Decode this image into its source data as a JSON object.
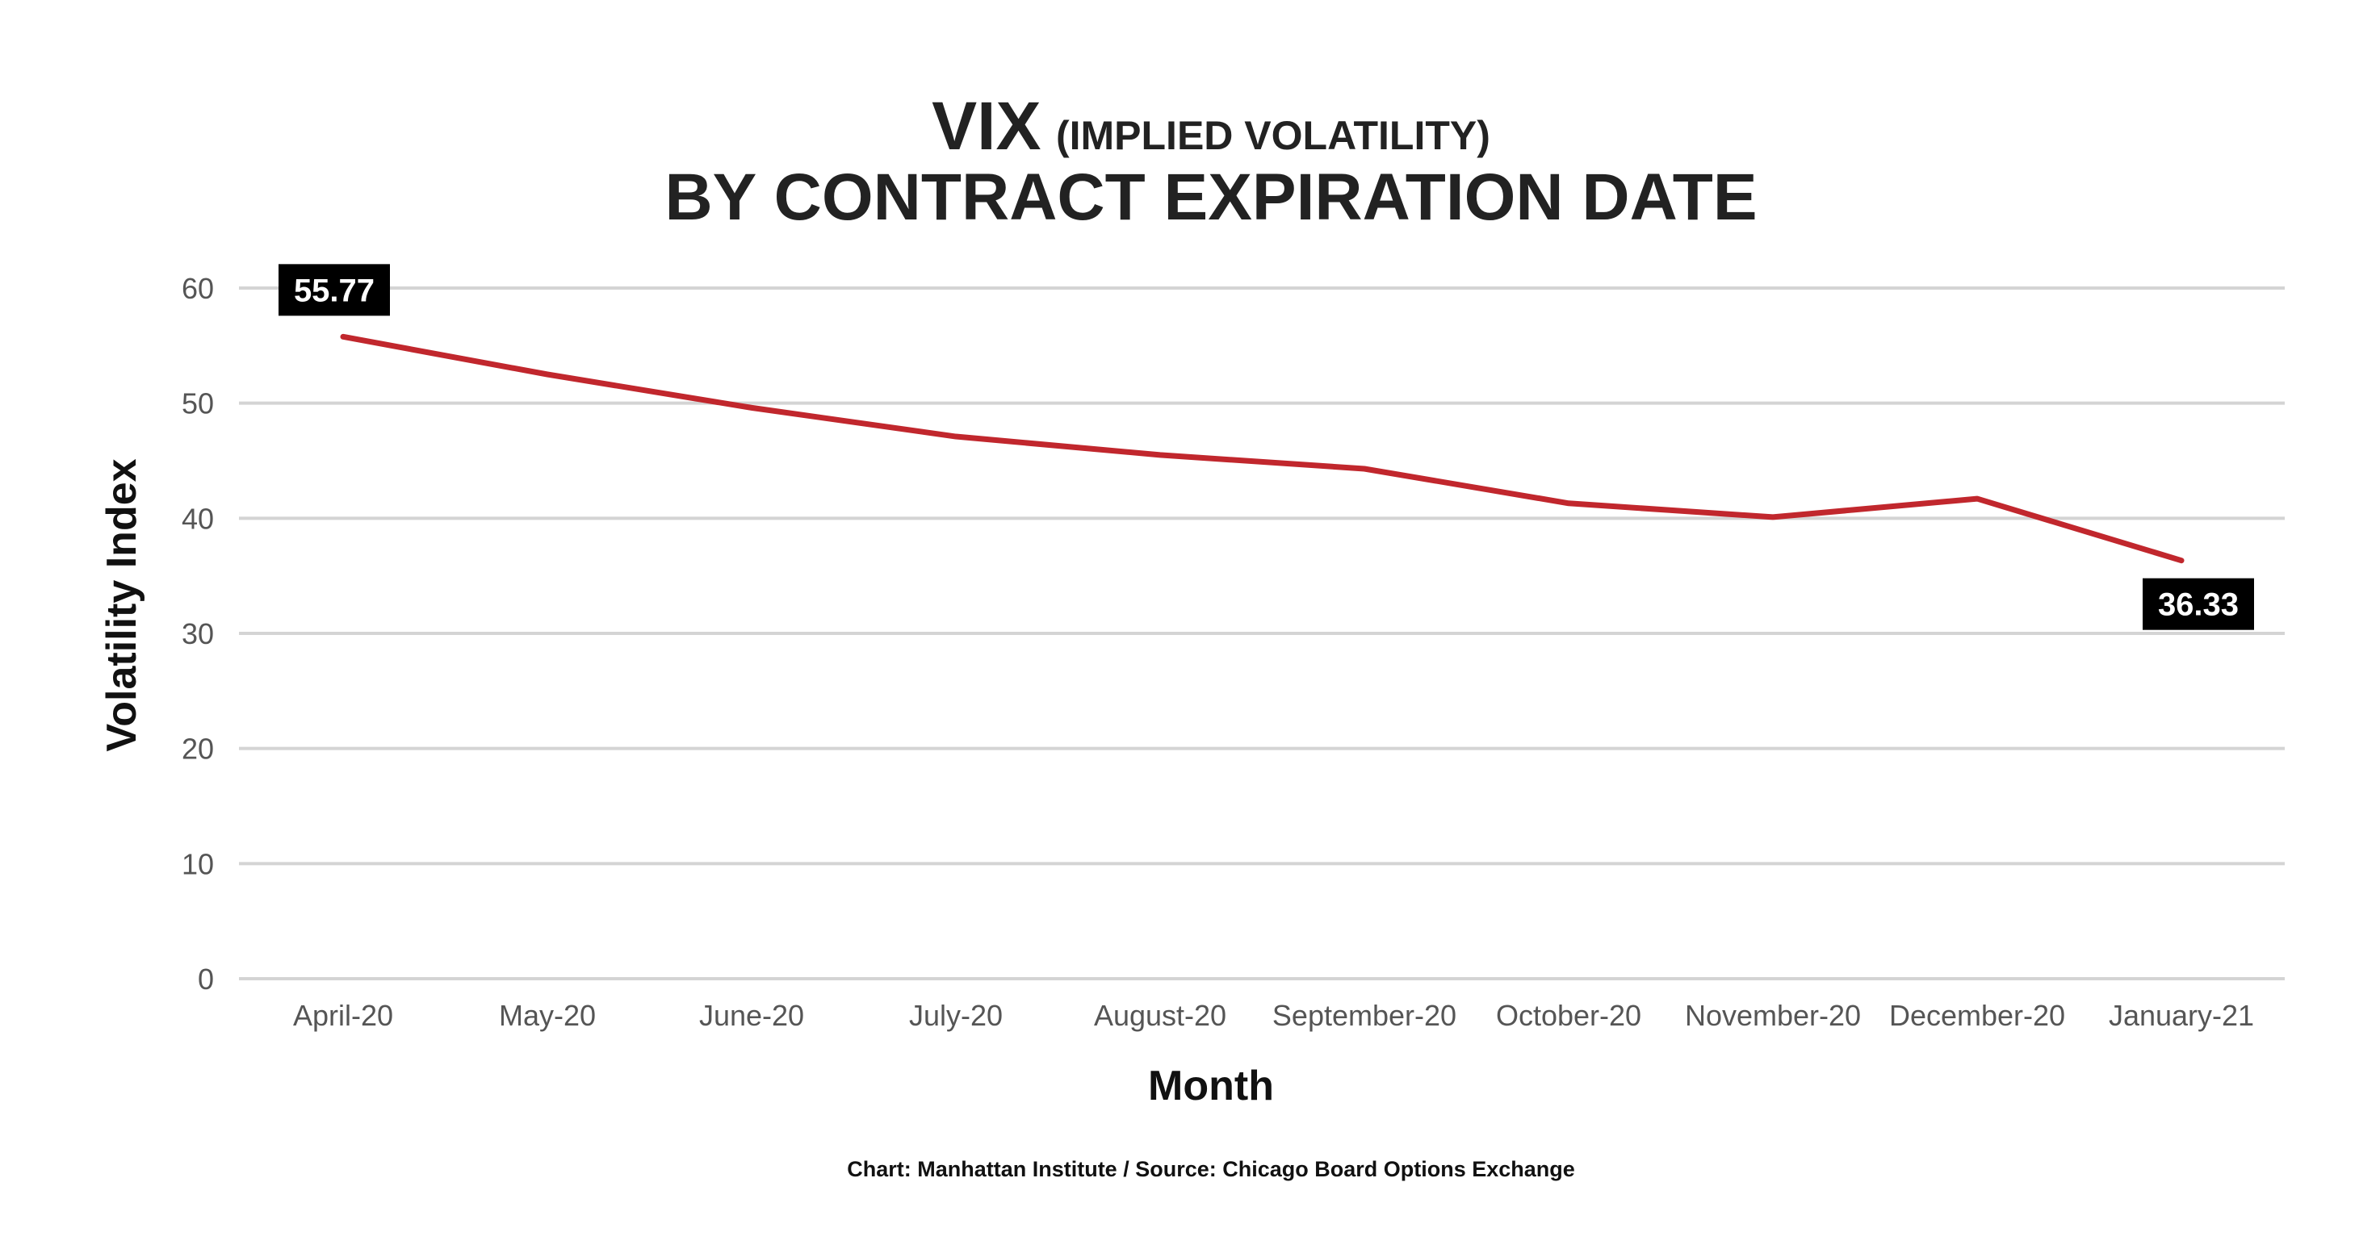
{
  "chart_data": {
    "type": "line",
    "title_main": "VIX",
    "title_paren": "(IMPLIED VOLATILITY)",
    "subtitle": "BY CONTRACT EXPIRATION DATE",
    "xlabel": "Month",
    "ylabel": "Volatility Index",
    "source": "Chart: Manhattan Institute / Source: Chicago Board Options Exchange",
    "categories": [
      "April-20",
      "May-20",
      "June-20",
      "July-20",
      "August-20",
      "September-20",
      "October-20",
      "November-20",
      "December-20",
      "January-21"
    ],
    "series": [
      {
        "values": [
          55.77,
          52.5,
          49.6,
          47.1,
          45.5,
          44.3,
          41.3,
          40.1,
          41.7,
          36.33
        ],
        "color": "#c1272d"
      }
    ],
    "annotations": [
      {
        "index": 0,
        "label": "55.77",
        "placement": "above-left"
      },
      {
        "index": 9,
        "label": "36.33",
        "placement": "below"
      }
    ],
    "ylim": [
      0,
      60
    ],
    "yticks": [
      0,
      10,
      20,
      30,
      40,
      50,
      60
    ],
    "yticks_labels": [
      "0",
      "10",
      "20",
      "30",
      "40",
      "50",
      "60"
    ],
    "grid": true,
    "legend": "none",
    "colors": {
      "line": "#c1272d",
      "grid": "#d4d4d4",
      "label_bg": "#000000",
      "label_fg": "#ffffff"
    }
  }
}
